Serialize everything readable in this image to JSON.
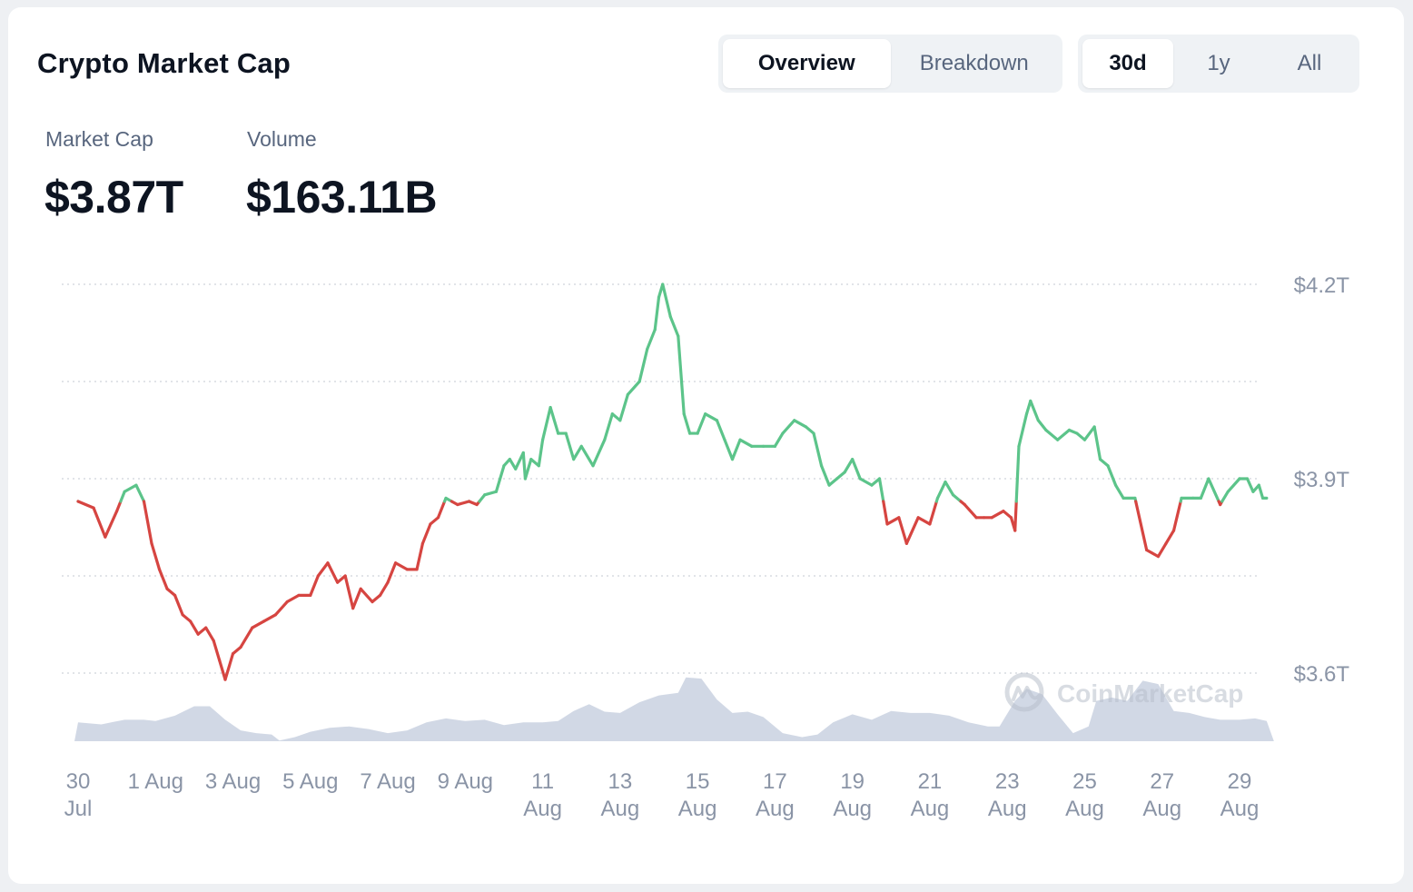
{
  "header": {
    "title": "Crypto Market Cap"
  },
  "tabs": [
    {
      "label": "Overview",
      "active": true
    },
    {
      "label": "Breakdown",
      "active": false
    }
  ],
  "ranges": [
    {
      "label": "30d",
      "active": true
    },
    {
      "label": "1y",
      "active": false
    },
    {
      "label": "All",
      "active": false
    }
  ],
  "stats": {
    "market_cap": {
      "label": "Market Cap",
      "value": "$3.87T"
    },
    "volume": {
      "label": "Volume",
      "value": "$163.11B"
    }
  },
  "watermark": {
    "text": "CoinMarketCap",
    "icon": "coinmarketcap-logo-icon"
  },
  "colors": {
    "up": "#5cc48a",
    "down": "#d64541",
    "volume": "#cfd6e4",
    "grid": "#cfd3da",
    "axis_text": "#8a94a6"
  },
  "chart_data": {
    "type": "line",
    "title": "",
    "xlabel": "",
    "ylabel": "",
    "unit": "USD trillions",
    "ylim": [
      3.6,
      4.2
    ],
    "y_ticks": [
      {
        "value": 3.6,
        "label": "$3.6T"
      },
      {
        "value": 3.9,
        "label": "$3.9T"
      },
      {
        "value": 4.2,
        "label": "$4.2T"
      }
    ],
    "x_range": [
      0,
      30
    ],
    "x_ticks": [
      {
        "x": 0,
        "line1": "30",
        "line2": "Jul"
      },
      {
        "x": 2,
        "line1": "1 Aug",
        "line2": ""
      },
      {
        "x": 4,
        "line1": "3 Aug",
        "line2": ""
      },
      {
        "x": 6,
        "line1": "5 Aug",
        "line2": ""
      },
      {
        "x": 8,
        "line1": "7 Aug",
        "line2": ""
      },
      {
        "x": 10,
        "line1": "9 Aug",
        "line2": ""
      },
      {
        "x": 12,
        "line1": "11",
        "line2": "Aug"
      },
      {
        "x": 14,
        "line1": "13",
        "line2": "Aug"
      },
      {
        "x": 16,
        "line1": "15",
        "line2": "Aug"
      },
      {
        "x": 18,
        "line1": "17",
        "line2": "Aug"
      },
      {
        "x": 20,
        "line1": "19",
        "line2": "Aug"
      },
      {
        "x": 22,
        "line1": "21",
        "line2": "Aug"
      },
      {
        "x": 24,
        "line1": "23",
        "line2": "Aug"
      },
      {
        "x": 26,
        "line1": "25",
        "line2": "Aug"
      },
      {
        "x": 28,
        "line1": "27",
        "line2": "Aug"
      },
      {
        "x": 30,
        "line1": "29",
        "line2": "Aug"
      }
    ],
    "baseline": 3.865,
    "market_cap_series": [
      [
        0.0,
        3.865
      ],
      [
        0.4,
        3.855
      ],
      [
        0.7,
        3.81
      ],
      [
        1.0,
        3.85
      ],
      [
        1.2,
        3.88
      ],
      [
        1.5,
        3.89
      ],
      [
        1.7,
        3.865
      ],
      [
        1.9,
        3.8
      ],
      [
        2.1,
        3.76
      ],
      [
        2.3,
        3.73
      ],
      [
        2.5,
        3.72
      ],
      [
        2.7,
        3.69
      ],
      [
        2.9,
        3.68
      ],
      [
        3.1,
        3.66
      ],
      [
        3.3,
        3.67
      ],
      [
        3.5,
        3.65
      ],
      [
        3.65,
        3.62
      ],
      [
        3.8,
        3.59
      ],
      [
        4.0,
        3.63
      ],
      [
        4.2,
        3.64
      ],
      [
        4.5,
        3.67
      ],
      [
        4.8,
        3.68
      ],
      [
        5.1,
        3.69
      ],
      [
        5.4,
        3.71
      ],
      [
        5.7,
        3.72
      ],
      [
        6.0,
        3.72
      ],
      [
        6.2,
        3.75
      ],
      [
        6.45,
        3.77
      ],
      [
        6.7,
        3.74
      ],
      [
        6.9,
        3.75
      ],
      [
        7.1,
        3.7
      ],
      [
        7.3,
        3.73
      ],
      [
        7.6,
        3.71
      ],
      [
        7.8,
        3.72
      ],
      [
        8.0,
        3.74
      ],
      [
        8.2,
        3.77
      ],
      [
        8.5,
        3.76
      ],
      [
        8.75,
        3.76
      ],
      [
        8.9,
        3.8
      ],
      [
        9.1,
        3.83
      ],
      [
        9.3,
        3.84
      ],
      [
        9.5,
        3.87
      ],
      [
        9.8,
        3.86
      ],
      [
        10.1,
        3.865
      ],
      [
        10.3,
        3.86
      ],
      [
        10.5,
        3.875
      ],
      [
        10.8,
        3.88
      ],
      [
        11.0,
        3.92
      ],
      [
        11.15,
        3.93
      ],
      [
        11.3,
        3.915
      ],
      [
        11.5,
        3.94
      ],
      [
        11.55,
        3.9
      ],
      [
        11.7,
        3.93
      ],
      [
        11.9,
        3.92
      ],
      [
        12.0,
        3.96
      ],
      [
        12.2,
        4.01
      ],
      [
        12.4,
        3.97
      ],
      [
        12.6,
        3.97
      ],
      [
        12.8,
        3.93
      ],
      [
        13.0,
        3.95
      ],
      [
        13.3,
        3.92
      ],
      [
        13.6,
        3.96
      ],
      [
        13.8,
        4.0
      ],
      [
        14.0,
        3.99
      ],
      [
        14.2,
        4.03
      ],
      [
        14.5,
        4.05
      ],
      [
        14.7,
        4.1
      ],
      [
        14.9,
        4.13
      ],
      [
        15.0,
        4.18
      ],
      [
        15.1,
        4.2
      ],
      [
        15.3,
        4.15
      ],
      [
        15.5,
        4.12
      ],
      [
        15.65,
        4.0
      ],
      [
        15.8,
        3.97
      ],
      [
        16.0,
        3.97
      ],
      [
        16.2,
        4.0
      ],
      [
        16.5,
        3.99
      ],
      [
        16.7,
        3.96
      ],
      [
        16.9,
        3.93
      ],
      [
        17.1,
        3.96
      ],
      [
        17.4,
        3.95
      ],
      [
        17.7,
        3.95
      ],
      [
        18.0,
        3.95
      ],
      [
        18.2,
        3.97
      ],
      [
        18.5,
        3.99
      ],
      [
        18.8,
        3.98
      ],
      [
        19.0,
        3.97
      ],
      [
        19.2,
        3.92
      ],
      [
        19.4,
        3.89
      ],
      [
        19.6,
        3.9
      ],
      [
        19.8,
        3.91
      ],
      [
        20.0,
        3.93
      ],
      [
        20.2,
        3.9
      ],
      [
        20.5,
        3.89
      ],
      [
        20.7,
        3.9
      ],
      [
        20.9,
        3.83
      ],
      [
        21.2,
        3.84
      ],
      [
        21.4,
        3.8
      ],
      [
        21.7,
        3.84
      ],
      [
        22.0,
        3.83
      ],
      [
        22.2,
        3.87
      ],
      [
        22.4,
        3.895
      ],
      [
        22.6,
        3.875
      ],
      [
        22.9,
        3.86
      ],
      [
        23.2,
        3.84
      ],
      [
        23.4,
        3.84
      ],
      [
        23.6,
        3.84
      ],
      [
        23.9,
        3.85
      ],
      [
        24.1,
        3.84
      ],
      [
        24.2,
        3.82
      ],
      [
        24.3,
        3.95
      ],
      [
        24.5,
        4.0
      ],
      [
        24.6,
        4.02
      ],
      [
        24.8,
        3.99
      ],
      [
        25.0,
        3.975
      ],
      [
        25.3,
        3.96
      ],
      [
        25.6,
        3.975
      ],
      [
        25.8,
        3.97
      ],
      [
        26.0,
        3.96
      ],
      [
        26.25,
        3.98
      ],
      [
        26.4,
        3.93
      ],
      [
        26.6,
        3.92
      ],
      [
        26.8,
        3.89
      ],
      [
        27.0,
        3.87
      ],
      [
        27.3,
        3.87
      ],
      [
        27.6,
        3.79
      ],
      [
        27.9,
        3.78
      ],
      [
        28.1,
        3.8
      ],
      [
        28.3,
        3.82
      ],
      [
        28.5,
        3.87
      ],
      [
        28.8,
        3.87
      ],
      [
        29.0,
        3.87
      ],
      [
        29.2,
        3.9
      ],
      [
        29.5,
        3.86
      ],
      [
        29.7,
        3.88
      ],
      [
        30.0,
        3.9
      ],
      [
        30.2,
        3.9
      ],
      [
        30.35,
        3.88
      ],
      [
        30.5,
        3.89
      ],
      [
        30.6,
        3.87
      ],
      [
        30.7,
        3.87
      ]
    ],
    "volume_series": {
      "unit": "relative",
      "points": [
        [
          0.0,
          0.28
        ],
        [
          0.6,
          0.25
        ],
        [
          1.2,
          0.32
        ],
        [
          1.7,
          0.32
        ],
        [
          2.0,
          0.3
        ],
        [
          2.5,
          0.38
        ],
        [
          3.0,
          0.52
        ],
        [
          3.4,
          0.52
        ],
        [
          3.8,
          0.32
        ],
        [
          4.2,
          0.16
        ],
        [
          4.6,
          0.12
        ],
        [
          5.0,
          0.1
        ],
        [
          5.2,
          0.01
        ],
        [
          5.6,
          0.06
        ],
        [
          6.0,
          0.14
        ],
        [
          6.5,
          0.2
        ],
        [
          7.0,
          0.22
        ],
        [
          7.5,
          0.18
        ],
        [
          8.0,
          0.12
        ],
        [
          8.5,
          0.16
        ],
        [
          9.0,
          0.28
        ],
        [
          9.5,
          0.34
        ],
        [
          10.0,
          0.3
        ],
        [
          10.5,
          0.32
        ],
        [
          11.0,
          0.24
        ],
        [
          11.5,
          0.28
        ],
        [
          12.0,
          0.28
        ],
        [
          12.4,
          0.3
        ],
        [
          12.8,
          0.45
        ],
        [
          13.2,
          0.55
        ],
        [
          13.6,
          0.44
        ],
        [
          14.0,
          0.42
        ],
        [
          14.5,
          0.58
        ],
        [
          15.0,
          0.68
        ],
        [
          15.5,
          0.72
        ],
        [
          15.7,
          0.95
        ],
        [
          16.1,
          0.93
        ],
        [
          16.5,
          0.62
        ],
        [
          16.9,
          0.42
        ],
        [
          17.3,
          0.44
        ],
        [
          17.7,
          0.36
        ],
        [
          18.2,
          0.12
        ],
        [
          18.7,
          0.06
        ],
        [
          19.1,
          0.1
        ],
        [
          19.5,
          0.28
        ],
        [
          20.0,
          0.4
        ],
        [
          20.5,
          0.32
        ],
        [
          21.0,
          0.45
        ],
        [
          21.5,
          0.42
        ],
        [
          22.0,
          0.42
        ],
        [
          22.5,
          0.38
        ],
        [
          23.0,
          0.28
        ],
        [
          23.5,
          0.22
        ],
        [
          23.8,
          0.22
        ],
        [
          24.2,
          0.6
        ],
        [
          24.5,
          0.78
        ],
        [
          24.9,
          0.7
        ],
        [
          25.3,
          0.4
        ],
        [
          25.7,
          0.12
        ],
        [
          26.1,
          0.22
        ],
        [
          26.3,
          0.6
        ],
        [
          26.7,
          0.65
        ],
        [
          27.1,
          0.6
        ],
        [
          27.5,
          0.9
        ],
        [
          27.9,
          0.85
        ],
        [
          28.3,
          0.45
        ],
        [
          28.7,
          0.42
        ],
        [
          29.1,
          0.36
        ],
        [
          29.5,
          0.32
        ],
        [
          30.0,
          0.32
        ],
        [
          30.4,
          0.34
        ],
        [
          30.7,
          0.3
        ]
      ]
    }
  }
}
